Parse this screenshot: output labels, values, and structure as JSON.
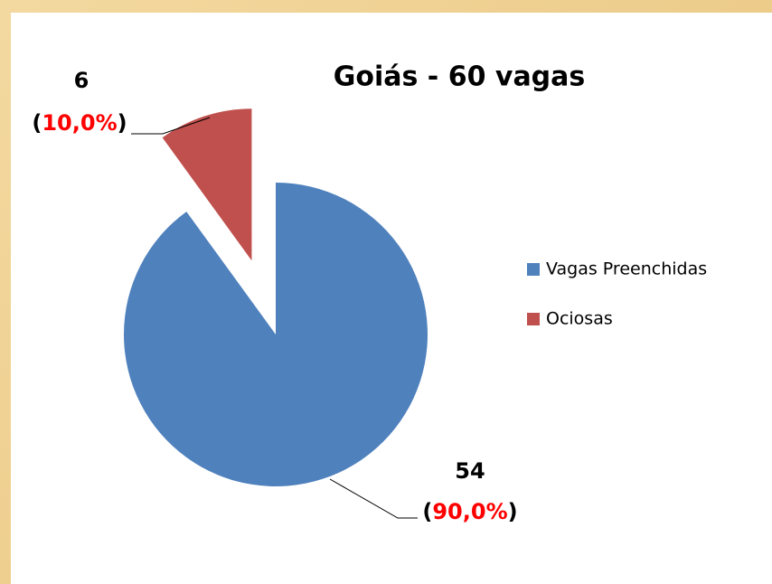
{
  "chart_data": {
    "type": "pie",
    "title": "Goiás - 60 vagas",
    "categories": [
      "Vagas Preenchidas",
      "Ociosas"
    ],
    "values": [
      54,
      6
    ],
    "value_labels": [
      "54",
      "6"
    ],
    "percent_labels": [
      "(90,0%)",
      "(10,0%)"
    ],
    "colors": [
      "#4f81bd",
      "#c0504d"
    ],
    "exploded": [
      false,
      true
    ],
    "legend": "right"
  }
}
